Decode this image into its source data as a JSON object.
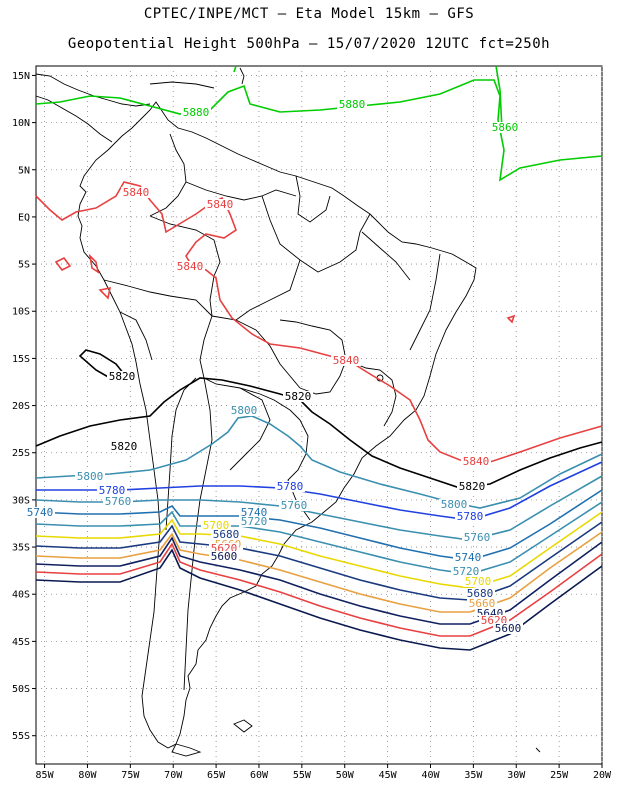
{
  "header": {
    "line1": "CPTEC/INPE/MCT –  Eta Model 15km – GFS",
    "line2": "Geopotential Height 500hPa – 15/07/2020 12UTC fct=250h"
  },
  "axes": {
    "lat_labels": [
      "15N",
      "10N",
      "5N",
      "EQ",
      "5S",
      "10S",
      "15S",
      "20S",
      "25S",
      "30S",
      "35S",
      "40S",
      "45S",
      "50S",
      "55S"
    ],
    "lon_labels": [
      "85W",
      "80W",
      "75W",
      "70W",
      "65W",
      "60W",
      "55W",
      "50W",
      "45W",
      "40W",
      "35W",
      "30W",
      "25W",
      "20W"
    ],
    "lat_range": [
      -58,
      16
    ],
    "lon_range": [
      -86,
      -20
    ],
    "grid": "dotted"
  },
  "contours": [
    {
      "value": "5880",
      "color": "#00cc00"
    },
    {
      "value": "5860",
      "color": "#00cc00"
    },
    {
      "value": "5840",
      "color": "#e84040"
    },
    {
      "value": "5820",
      "color": "#000000"
    },
    {
      "value": "5800",
      "color": "#3a8fb0"
    },
    {
      "value": "5780",
      "color": "#2040e0"
    },
    {
      "value": "5760",
      "color": "#3a8fb0"
    },
    {
      "value": "5740",
      "color": "#2070b0"
    },
    {
      "value": "5720",
      "color": "#3a8fb0"
    },
    {
      "value": "5700",
      "color": "#e8d800"
    },
    {
      "value": "5680",
      "color": "#1a3a80"
    },
    {
      "value": "5660",
      "color": "#e8a040"
    },
    {
      "value": "5640",
      "color": "#102060"
    },
    {
      "value": "5620",
      "color": "#e84040"
    },
    {
      "value": "5600",
      "color": "#0a1a50"
    }
  ]
}
